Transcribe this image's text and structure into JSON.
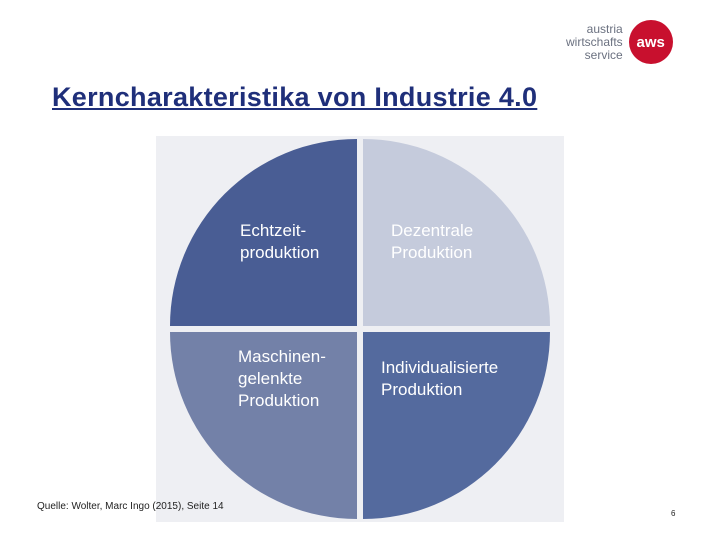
{
  "logo": {
    "line1": "austria",
    "line2": "wirtschafts",
    "line3": "service",
    "badge": "aws",
    "brand_color": "#c8102e"
  },
  "title": "Kerncharakteristika von Industrie 4.0",
  "quadrants": [
    {
      "label": "Echtzeit-\nproduktion",
      "color": "#495d94"
    },
    {
      "label": "Dezentrale\nProduktion",
      "color": "#c5cbdc"
    },
    {
      "label": "Maschinen-\ngelenkte\nProduktion",
      "color": "#7381a8"
    },
    {
      "label": "Individualisierte\nProduktion",
      "color": "#546a9e"
    }
  ],
  "source": "Quelle: Wolter, Marc Ingo (2015), Seite 14",
  "page_number": "6"
}
